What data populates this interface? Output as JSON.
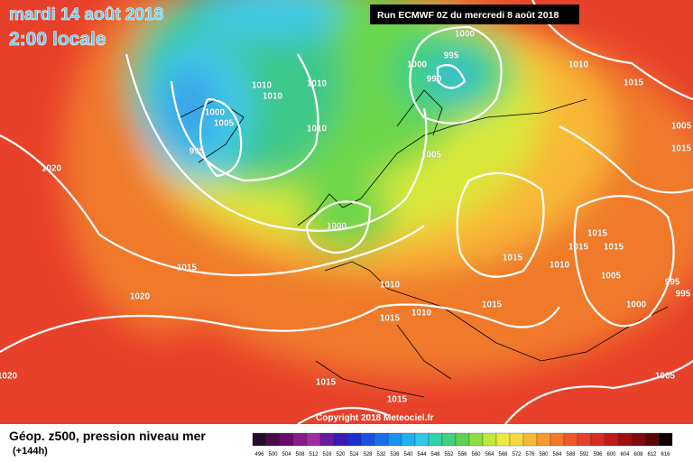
{
  "header": {
    "date": "mardi 14 août 2018",
    "time": "2:00 locale",
    "run": "Run ECMWF 0Z du mercredi 8 août 2018"
  },
  "isobar_labels": [
    1000,
    995,
    1000,
    990,
    1010,
    1015,
    1010,
    1010,
    1010,
    1000,
    1005,
    1010,
    995,
    1005,
    1005,
    1015,
    1020,
    1000,
    1015,
    1015,
    1015,
    1015,
    1010,
    1015,
    1005,
    995,
    995,
    1020,
    1010,
    1015,
    1000,
    1015,
    1010,
    1015,
    1005,
    1015,
    1020
  ],
  "copyright": "Copyright 2018 Meteociel.fr",
  "legend": {
    "title": "Géop. z500, pression niveau mer",
    "lead": "(+144h)",
    "levels": [
      496,
      500,
      504,
      508,
      512,
      516,
      520,
      524,
      528,
      532,
      536,
      540,
      544,
      548,
      552,
      556,
      560,
      564,
      568,
      572,
      576,
      580,
      584,
      588,
      592,
      596,
      600,
      604,
      608,
      612,
      616
    ],
    "colors": [
      "#2a0a2a",
      "#4a0a4a",
      "#6a0a6a",
      "#8a1a8a",
      "#a02ca0",
      "#6a1aa0",
      "#3a1ab4",
      "#1a30d0",
      "#1a50e0",
      "#1a70ea",
      "#1a90f0",
      "#20b0f0",
      "#30c8e8",
      "#30d0b0",
      "#40d080",
      "#60d050",
      "#90dc40",
      "#c0e840",
      "#e8ec40",
      "#f8d840",
      "#f8b838",
      "#f89830",
      "#f07a2a",
      "#ea5a28",
      "#e8412b",
      "#d82a20",
      "#c01a18",
      "#a01010",
      "#800808",
      "#600404",
      "#100000"
    ]
  }
}
